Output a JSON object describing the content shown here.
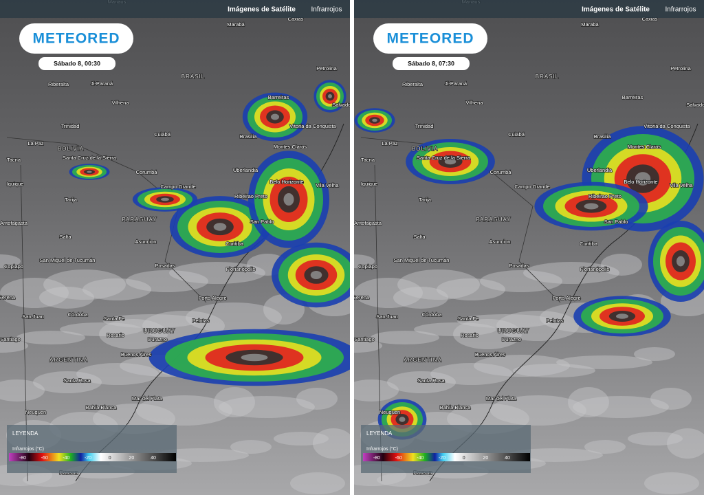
{
  "header": {
    "section": "Imágenes de Satélite",
    "product": "Infrarrojos"
  },
  "logo": "METEORED",
  "panels": [
    {
      "time": "Sábado 8, 00:30"
    },
    {
      "time": "Sábado 8, 07:30"
    }
  ],
  "legend": {
    "title": "LEYENDA",
    "subtitle": "Infrarrojos (°C)",
    "ticks": [
      -80,
      -60,
      -40,
      -20,
      0,
      20,
      40
    ]
  },
  "map_labels": [
    "Manaus",
    "Marabá",
    "Caxias",
    "Riberalta",
    "Ji-Paraná",
    "BRASIL",
    "Petrolina",
    "Vilhena",
    "Barreiras",
    "Salvador",
    "Trinidad",
    "Cuiabá",
    "Brasilia",
    "Vitoria da Conquista",
    "La Paz",
    "BOLIVIA",
    "Montes Claros",
    "Tacna",
    "Santa Cruz de la Sierra",
    "Corumbá",
    "Uberlandia",
    "Iquique",
    "Campo Grande",
    "Belo Horizonte",
    "Vila Velha",
    "Ribeirao Preto",
    "Tarija",
    "PARAGUAY",
    "Antofagasta",
    "San Pablo",
    "Salta",
    "Asuncion",
    "Curitiba",
    "Copiapo",
    "San Miguel de Tucumán",
    "Posadas",
    "Florianópolis",
    "Serena",
    "Porto Alegre",
    "Córdoba",
    "Santa Fe",
    "San Juan",
    "Pelotas",
    "URUGUAY",
    "Rosario",
    "Durazno",
    "Santiago",
    "Buenos Aires",
    "ARGENTINA",
    "Santa Rosa",
    "Mar del Plata",
    "Bahía Blanca",
    "Neuquen",
    "Rawson"
  ]
}
